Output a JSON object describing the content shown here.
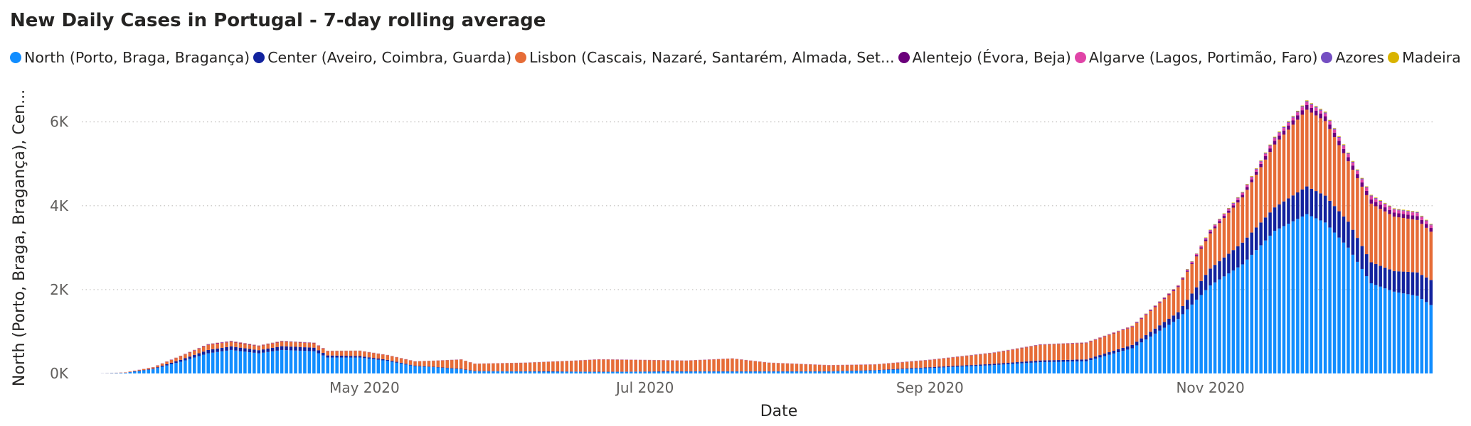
{
  "chart_data": {
    "type": "bar",
    "stacked": true,
    "title": "New Daily Cases in Portugal - 7-day rolling average",
    "xlabel": "Date",
    "ylabel": "North (Porto, Braga, Bragança), Cen...",
    "ylim": [
      0,
      6400
    ],
    "grid": "horizontal dotted",
    "legend_position": "top-left",
    "x_ticks": [
      "May 2020",
      "Jul 2020",
      "Sep 2020",
      "Nov 2020"
    ],
    "y_ticks": [
      "0K",
      "2K",
      "4K",
      "6K"
    ],
    "series": [
      {
        "name": "North (Porto, Braga, Bragança)",
        "color": "#118DFF"
      },
      {
        "name": "Center (Aveiro, Coimbra, Guarda)",
        "color": "#12239E"
      },
      {
        "name": "Lisbon (Cascais, Nazaré, Santarém, Almada, Set...",
        "color": "#E66C37"
      },
      {
        "name": "Alentejo (Évora, Beja)",
        "color": "#6B007B"
      },
      {
        "name": "Algarve (Lagos, Portimão, Faro)",
        "color": "#E044A7"
      },
      {
        "name": "Azores",
        "color": "#744EC2"
      },
      {
        "name": "Madeira",
        "color": "#D9B300"
      }
    ],
    "keypoints": {
      "columns": [
        "date",
        "north",
        "center",
        "lisbon",
        "alentejo",
        "algarve",
        "azores",
        "madeira"
      ],
      "rows": [
        [
          "2020-03-04",
          0,
          0,
          0,
          0,
          0,
          0,
          0
        ],
        [
          "2020-03-10",
          15,
          3,
          8,
          0,
          1,
          0,
          0
        ],
        [
          "2020-03-16",
          100,
          15,
          30,
          2,
          3,
          1,
          1
        ],
        [
          "2020-03-22",
          280,
          45,
          85,
          5,
          5,
          2,
          2
        ],
        [
          "2020-03-28",
          480,
          80,
          120,
          10,
          8,
          3,
          3
        ],
        [
          "2020-04-02",
          560,
          85,
          110,
          10,
          8,
          4,
          3
        ],
        [
          "2020-04-08",
          480,
          75,
          95,
          8,
          6,
          3,
          3
        ],
        [
          "2020-04-13",
          560,
          90,
          110,
          8,
          6,
          3,
          3
        ],
        [
          "2020-04-20",
          530,
          85,
          105,
          7,
          5,
          3,
          2
        ],
        [
          "2020-04-23",
          380,
          50,
          100,
          5,
          4,
          2,
          2
        ],
        [
          "2020-04-30",
          380,
          35,
          120,
          4,
          3,
          2,
          2
        ],
        [
          "2020-05-06",
          300,
          25,
          110,
          3,
          2,
          2,
          1
        ],
        [
          "2020-05-12",
          170,
          15,
          100,
          3,
          2,
          1,
          1
        ],
        [
          "2020-05-16",
          150,
          10,
          140,
          3,
          2,
          1,
          1
        ],
        [
          "2020-05-22",
          100,
          10,
          220,
          3,
          2,
          1,
          1
        ],
        [
          "2020-05-25",
          50,
          8,
          170,
          3,
          2,
          1,
          1
        ],
        [
          "2020-06-05",
          45,
          8,
          200,
          3,
          2,
          1,
          1
        ],
        [
          "2020-06-15",
          40,
          8,
          250,
          3,
          3,
          1,
          1
        ],
        [
          "2020-06-21",
          35,
          8,
          290,
          3,
          3,
          1,
          1
        ],
        [
          "2020-07-01",
          40,
          8,
          270,
          3,
          3,
          1,
          1
        ],
        [
          "2020-07-10",
          45,
          8,
          250,
          3,
          3,
          1,
          1
        ],
        [
          "2020-07-20",
          45,
          8,
          300,
          3,
          3,
          1,
          1
        ],
        [
          "2020-07-28",
          45,
          8,
          200,
          3,
          3,
          1,
          1
        ],
        [
          "2020-08-10",
          45,
          8,
          140,
          3,
          4,
          1,
          1
        ],
        [
          "2020-08-20",
          70,
          10,
          130,
          3,
          4,
          1,
          1
        ],
        [
          "2020-09-01",
          130,
          20,
          170,
          4,
          4,
          2,
          1
        ],
        [
          "2020-09-15",
          200,
          30,
          260,
          5,
          5,
          3,
          2
        ],
        [
          "2020-09-25",
          270,
          40,
          370,
          6,
          6,
          3,
          2
        ],
        [
          "2020-10-05",
          290,
          45,
          390,
          7,
          6,
          3,
          2
        ],
        [
          "2020-10-15",
          600,
          80,
          430,
          10,
          10,
          5,
          4
        ],
        [
          "2020-10-25",
          1300,
          160,
          600,
          20,
          15,
          8,
          6
        ],
        [
          "2020-11-01",
          2100,
          400,
          840,
          40,
          30,
          12,
          10
        ],
        [
          "2020-11-08",
          2600,
          520,
          1080,
          60,
          45,
          15,
          12
        ],
        [
          "2020-11-15",
          3400,
          560,
          1500,
          90,
          60,
          20,
          15
        ],
        [
          "2020-11-22",
          3800,
          660,
          1830,
          110,
          70,
          25,
          18
        ],
        [
          "2020-11-26",
          3600,
          640,
          1780,
          110,
          70,
          25,
          18
        ],
        [
          "2020-12-01",
          3000,
          620,
          1440,
          100,
          70,
          22,
          16
        ],
        [
          "2020-12-06",
          2150,
          500,
          1400,
          100,
          75,
          20,
          15
        ],
        [
          "2020-12-11",
          1950,
          490,
          1300,
          95,
          70,
          18,
          14
        ],
        [
          "2020-12-16",
          1850,
          560,
          1250,
          95,
          70,
          18,
          14
        ],
        [
          "2020-12-19",
          1630,
          600,
          1150,
          90,
          65,
          18,
          14
        ]
      ]
    }
  }
}
